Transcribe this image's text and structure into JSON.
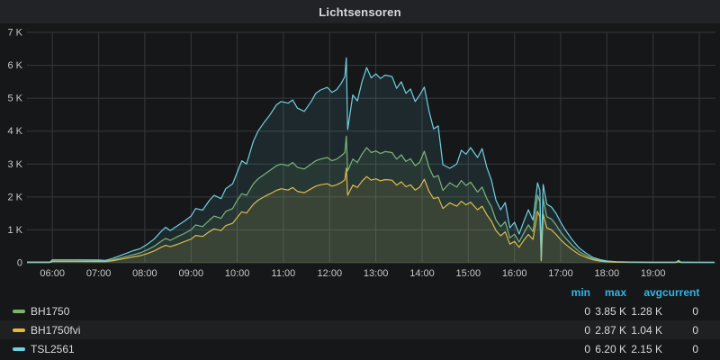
{
  "panel": {
    "title": "Lichtsensoren"
  },
  "colors": {
    "background": "#161719",
    "titlebar": "#212327",
    "grid": "#34383b",
    "axis_text": "#c8c8c8",
    "legend_header": "#33b5e5",
    "legend_text": "#d8d9da"
  },
  "y_axis": {
    "ticks": [
      {
        "value": 7000,
        "label": "7 K"
      },
      {
        "value": 6000,
        "label": "6 K"
      },
      {
        "value": 5000,
        "label": "5 K"
      },
      {
        "value": 4000,
        "label": "4 K"
      },
      {
        "value": 3000,
        "label": "3 K"
      },
      {
        "value": 2000,
        "label": "2 K"
      },
      {
        "value": 1000,
        "label": "1 K"
      },
      {
        "value": 0,
        "label": "0"
      }
    ]
  },
  "x_axis": {
    "grid_hours": [
      6,
      7,
      8,
      9,
      10,
      11,
      12,
      13,
      14,
      15,
      16,
      17,
      18,
      19,
      20
    ],
    "ticks": [
      {
        "hour": 6,
        "label": "06:00"
      },
      {
        "hour": 7,
        "label": "07:00"
      },
      {
        "hour": 8,
        "label": "08:00"
      },
      {
        "hour": 9,
        "label": "09:00"
      },
      {
        "hour": 10,
        "label": "10:00"
      },
      {
        "hour": 11,
        "label": "11:00"
      },
      {
        "hour": 12,
        "label": "12:00"
      },
      {
        "hour": 13,
        "label": "13:00"
      },
      {
        "hour": 14,
        "label": "14:00"
      },
      {
        "hour": 15,
        "label": "15:00"
      },
      {
        "hour": 16,
        "label": "16:00"
      },
      {
        "hour": 17,
        "label": "17:00"
      },
      {
        "hour": 18,
        "label": "18:00"
      },
      {
        "hour": 19,
        "label": "19:00"
      }
    ]
  },
  "legend": {
    "headers": [
      "min",
      "max",
      "avg",
      "current"
    ],
    "series": [
      {
        "label": "BH1750",
        "color": "#7eb26d",
        "min": "0",
        "max": "3.85 K",
        "avg": "1.28 K",
        "current": "0"
      },
      {
        "label": "BH1750fvi",
        "color": "#eab839",
        "min": "0",
        "max": "2.87 K",
        "avg": "1.04 K",
        "current": "0"
      },
      {
        "label": "TSL2561",
        "color": "#6ed0e0",
        "min": "0",
        "max": "6.20 K",
        "avg": "2.15 K",
        "current": "0"
      }
    ]
  },
  "chart_data": {
    "type": "line",
    "title": "Lichtsensoren",
    "x_unit": "hour_of_day",
    "xlim": [
      5.45,
      20.35
    ],
    "ylim": [
      0,
      7000
    ],
    "grid": true,
    "legend_position": "bottom",
    "fill_opacity": 0.1,
    "line_width": 1.2,
    "x": [
      5.45,
      5.95,
      6.0,
      6.5,
      7.0,
      7.15,
      7.3,
      7.45,
      7.6,
      7.75,
      7.9,
      8.05,
      8.2,
      8.35,
      8.45,
      8.55,
      8.7,
      8.85,
      9.0,
      9.1,
      9.25,
      9.4,
      9.5,
      9.65,
      9.75,
      9.9,
      10.0,
      10.1,
      10.2,
      10.35,
      10.45,
      10.6,
      10.7,
      10.85,
      10.95,
      11.1,
      11.2,
      11.3,
      11.45,
      11.6,
      11.7,
      11.8,
      11.95,
      12.05,
      12.15,
      12.25,
      12.33,
      12.36,
      12.39,
      12.5,
      12.6,
      12.7,
      12.8,
      12.9,
      13.0,
      13.1,
      13.2,
      13.35,
      13.45,
      13.55,
      13.65,
      13.75,
      13.85,
      13.95,
      14.05,
      14.15,
      14.25,
      14.35,
      14.45,
      14.6,
      14.75,
      14.85,
      14.95,
      15.05,
      15.2,
      15.3,
      15.4,
      15.5,
      15.6,
      15.7,
      15.8,
      15.9,
      16.0,
      16.1,
      16.2,
      16.3,
      16.4,
      16.5,
      16.55,
      16.58,
      16.62,
      16.7,
      16.8,
      16.9,
      17.0,
      17.1,
      17.25,
      17.4,
      17.55,
      17.7,
      17.85,
      18.0,
      18.2,
      18.5,
      19.0,
      19.5,
      19.55,
      19.6,
      20.0,
      20.33
    ],
    "series": [
      {
        "name": "BH1750",
        "color": "#7eb26d",
        "values": [
          15,
          15,
          55,
          55,
          52,
          48,
          85,
          140,
          195,
          250,
          300,
          390,
          500,
          650,
          740,
          680,
          790,
          890,
          1000,
          1150,
          1100,
          1300,
          1420,
          1350,
          1560,
          1650,
          1900,
          2100,
          2050,
          2400,
          2550,
          2700,
          2800,
          2950,
          3000,
          2950,
          3050,
          2900,
          2850,
          3000,
          3100,
          3150,
          3200,
          3100,
          3150,
          3250,
          3350,
          3850,
          2790,
          3150,
          3050,
          3300,
          3500,
          3350,
          3400,
          3320,
          3380,
          3350,
          3150,
          3280,
          3080,
          3160,
          2950,
          3060,
          3390,
          2900,
          2600,
          2650,
          2200,
          2430,
          2300,
          2500,
          2350,
          2450,
          2150,
          2300,
          1950,
          1700,
          1300,
          1100,
          1250,
          760,
          870,
          630,
          900,
          1150,
          950,
          2050,
          1850,
          80,
          1950,
          1400,
          1330,
          1150,
          930,
          760,
          530,
          340,
          220,
          120,
          70,
          40,
          25,
          18,
          15,
          15,
          45,
          15,
          14,
          14
        ]
      },
      {
        "name": "BH1750fvi",
        "color": "#eab839",
        "values": [
          10,
          10,
          40,
          40,
          38,
          35,
          60,
          100,
          140,
          180,
          215,
          280,
          360,
          470,
          530,
          490,
          560,
          640,
          720,
          830,
          800,
          950,
          1030,
          980,
          1130,
          1200,
          1380,
          1550,
          1510,
          1780,
          1900,
          2020,
          2090,
          2200,
          2250,
          2210,
          2290,
          2170,
          2130,
          2250,
          2330,
          2370,
          2400,
          2330,
          2370,
          2440,
          2520,
          2870,
          2050,
          2360,
          2290,
          2480,
          2620,
          2510,
          2550,
          2490,
          2530,
          2510,
          2360,
          2460,
          2310,
          2370,
          2210,
          2300,
          2540,
          2170,
          1950,
          1990,
          1650,
          1820,
          1720,
          1870,
          1760,
          1840,
          1610,
          1720,
          1460,
          1270,
          980,
          820,
          940,
          570,
          650,
          470,
          680,
          860,
          710,
          1560,
          1400,
          60,
          1480,
          1060,
          1000,
          860,
          700,
          570,
          400,
          255,
          165,
          90,
          50,
          30,
          18,
          13,
          11,
          11,
          33,
          11,
          10,
          10
        ]
      },
      {
        "name": "TSL2561",
        "color": "#6ed0e0",
        "values": [
          25,
          25,
          90,
          90,
          85,
          75,
          130,
          210,
          290,
          370,
          430,
          560,
          720,
          950,
          1080,
          980,
          1120,
          1260,
          1420,
          1650,
          1600,
          1900,
          2050,
          1950,
          2250,
          2400,
          2750,
          3100,
          3000,
          3700,
          4000,
          4300,
          4480,
          4800,
          4900,
          4850,
          4950,
          4700,
          4600,
          4900,
          5150,
          5250,
          5330,
          5180,
          5260,
          5450,
          5660,
          6230,
          4050,
          5100,
          4920,
          5500,
          5930,
          5620,
          5740,
          5600,
          5700,
          5660,
          5300,
          5500,
          5150,
          5280,
          4900,
          5100,
          5340,
          4610,
          4070,
          4160,
          2980,
          2870,
          3000,
          3420,
          3300,
          3500,
          3200,
          3470,
          2900,
          2515,
          1900,
          1610,
          1830,
          1065,
          1230,
          875,
          1250,
          1610,
          1300,
          2430,
          2200,
          110,
          2380,
          1780,
          1695,
          1500,
          1230,
          1000,
          700,
          450,
          290,
          160,
          95,
          55,
          35,
          25,
          22,
          22,
          70,
          22,
          20,
          20
        ]
      }
    ]
  }
}
